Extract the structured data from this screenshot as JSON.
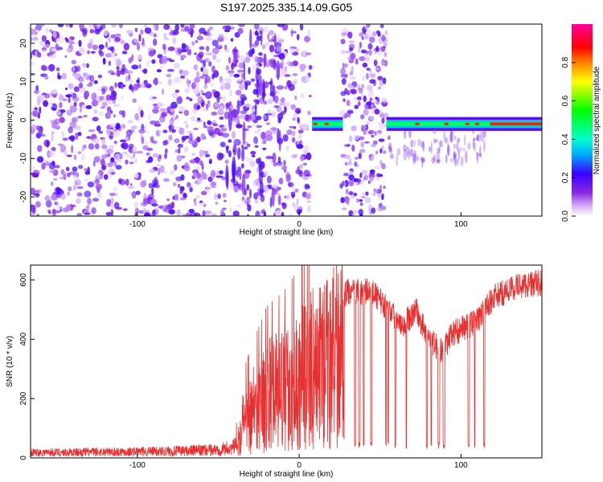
{
  "title": "S197.2025.335.14.09.G05",
  "chart_data": [
    {
      "type": "heatmap",
      "xlabel": "Height of straight line (km)",
      "ylabel": "Frequency (Hz)",
      "xlim": [
        -166,
        150
      ],
      "ylim": [
        -25,
        25
      ],
      "xticks": [
        -100,
        0,
        100
      ],
      "yticks": [
        20,
        10,
        0,
        -10,
        -20
      ],
      "xtick_labels": [
        "-100",
        "0",
        "100"
      ],
      "ytick_labels": [
        "20",
        "10",
        "0",
        "-10",
        "-20"
      ],
      "noise_region_km": [
        -166,
        7
      ],
      "noise_band_km": [
        26,
        54
      ],
      "signal_segments_km": [
        [
          8,
          27
        ],
        [
          54,
          150
        ]
      ],
      "signal_frequency_hz": -1,
      "peak_points_km": [
        10,
        17,
        73,
        91,
        104,
        110
      ],
      "colorbar": {
        "label": "Normalized spectral amplitude",
        "range": [
          0,
          1
        ],
        "ticks": [
          0.0,
          0.2,
          0.4,
          0.6,
          0.8
        ],
        "tick_labels": [
          "0.0",
          "0.2",
          "0.4",
          "0.6",
          "0.8"
        ],
        "colors": [
          "#ffffff",
          "#d9b3ff",
          "#8a2be2",
          "#3a00ff",
          "#00aaff",
          "#00ffcc",
          "#00ff00",
          "#ffff00",
          "#ff8000",
          "#ff0000",
          "#ff0099"
        ]
      }
    },
    {
      "type": "line",
      "xlabel": "Height of straight line (km)",
      "ylabel": "SNR (10 * v/v)",
      "xlim": [
        -166,
        150
      ],
      "ylim": [
        0,
        650
      ],
      "xticks": [
        -100,
        0,
        100
      ],
      "yticks": [
        0,
        200,
        400,
        600
      ],
      "xtick_labels": [
        "-100",
        "0",
        "100"
      ],
      "ytick_labels": [
        "0",
        "200",
        "400",
        "600"
      ],
      "line_color": "#e83030",
      "series": [
        {
          "name": "SNR",
          "envelope": [
            {
              "x": -166,
              "y": 20
            },
            {
              "x": -120,
              "y": 22
            },
            {
              "x": -80,
              "y": 25
            },
            {
              "x": -50,
              "y": 30
            },
            {
              "x": -40,
              "y": 40
            },
            {
              "x": -35,
              "y": 180
            },
            {
              "x": -28,
              "y": 250
            },
            {
              "x": -20,
              "y": 320
            },
            {
              "x": -10,
              "y": 350
            },
            {
              "x": 0,
              "y": 400
            },
            {
              "x": 10,
              "y": 470
            },
            {
              "x": 20,
              "y": 510
            },
            {
              "x": 30,
              "y": 560
            },
            {
              "x": 45,
              "y": 560
            },
            {
              "x": 55,
              "y": 500
            },
            {
              "x": 65,
              "y": 450
            },
            {
              "x": 72,
              "y": 500
            },
            {
              "x": 80,
              "y": 400
            },
            {
              "x": 88,
              "y": 360
            },
            {
              "x": 95,
              "y": 420
            },
            {
              "x": 110,
              "y": 460
            },
            {
              "x": 120,
              "y": 540
            },
            {
              "x": 135,
              "y": 580
            },
            {
              "x": 150,
              "y": 590
            }
          ],
          "dropouts_start_km": 28,
          "dropouts_end_km": 118,
          "dropout_level": 30
        }
      ]
    }
  ]
}
